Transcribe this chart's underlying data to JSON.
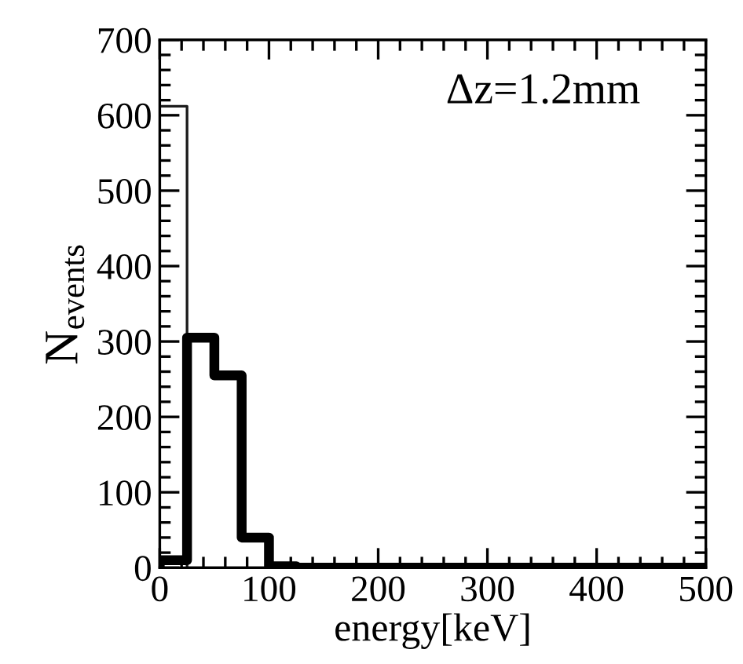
{
  "chart_data": {
    "type": "histogram",
    "xlabel": "energy[keV]",
    "ylabel": "N$_{events}$",
    "annotations": [
      "Δz=1.2mm"
    ],
    "bins": [
      0,
      25,
      50,
      75,
      100,
      125,
      150,
      175,
      200,
      225,
      250,
      275,
      300,
      325,
      350,
      375,
      400,
      425,
      450,
      475,
      500
    ],
    "series": [
      {
        "color": "#1c1c1c",
        "values": [
          612,
          0,
          0,
          0,
          0,
          0,
          0,
          0,
          0,
          0,
          0,
          0,
          0,
          0,
          0,
          0,
          0,
          0,
          0,
          0
        ]
      },
      {
        "color": "#000000",
        "values": [
          10,
          305,
          255,
          40,
          2,
          0,
          0,
          0,
          0,
          0,
          0,
          0,
          0,
          0,
          0,
          0,
          0,
          0,
          0,
          0
        ]
      }
    ],
    "xlim": [
      0,
      500
    ],
    "xticks": [
      0,
      100,
      200,
      300,
      400,
      500
    ],
    "ylim": [
      0,
      700
    ],
    "yticks": [
      0,
      100,
      200,
      300,
      400,
      500,
      600,
      700
    ],
    "grid": false,
    "legend": false
  }
}
